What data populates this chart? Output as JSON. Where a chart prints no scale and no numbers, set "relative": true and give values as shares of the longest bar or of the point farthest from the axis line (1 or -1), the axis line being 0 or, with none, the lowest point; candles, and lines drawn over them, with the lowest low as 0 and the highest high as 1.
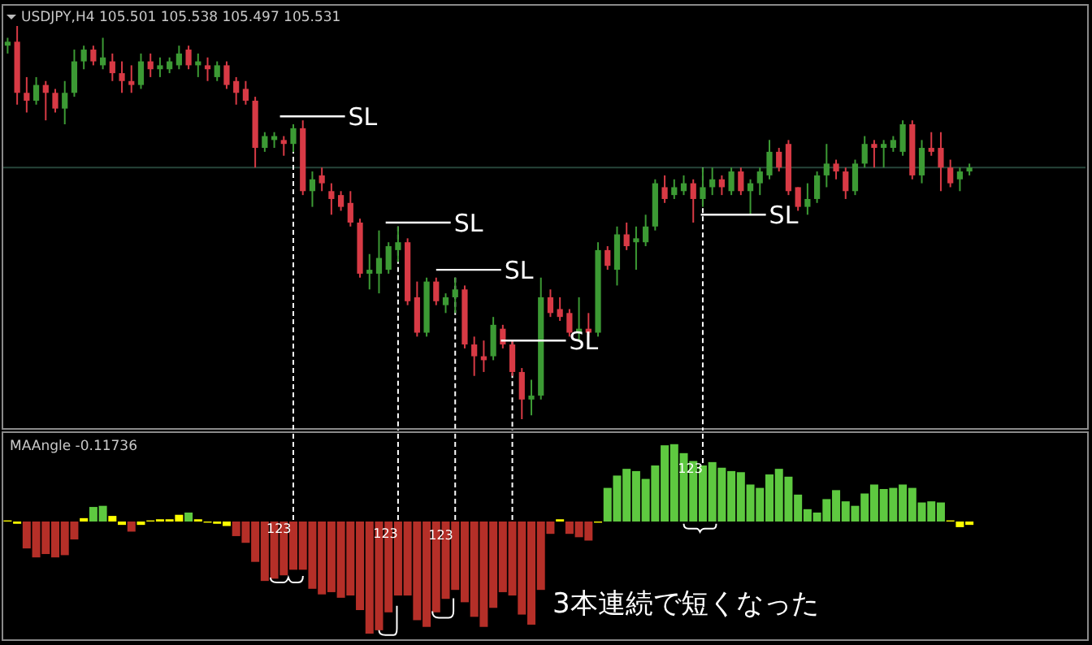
{
  "chart_data": [
    {
      "type": "candlestick",
      "title": "USDJPY,H4 105.501 105.538 105.497 105.531",
      "relative": true,
      "categories": [
        null,
        null,
        null,
        null,
        null,
        null,
        null,
        null,
        null,
        null,
        null,
        null,
        null,
        null,
        null,
        null,
        null,
        null,
        null,
        null,
        null,
        null,
        null,
        null,
        null,
        null,
        null,
        null,
        null,
        null,
        null,
        null,
        null,
        null,
        null,
        null,
        null,
        null,
        null,
        null,
        null,
        null,
        null,
        null,
        null,
        null,
        null,
        null,
        null,
        null,
        null,
        null,
        null,
        null,
        null,
        null,
        null,
        null,
        null,
        null,
        null,
        null,
        null,
        null,
        null,
        null,
        null,
        null,
        null,
        null,
        null,
        null,
        null,
        null,
        null,
        null,
        null,
        null,
        null,
        null,
        null,
        null,
        null,
        null,
        null,
        null,
        null,
        null,
        null,
        null,
        null,
        null,
        null,
        null,
        null,
        null,
        null,
        null,
        null,
        null,
        null,
        null
      ],
      "ohlc": [
        [
          0.95,
          0.97,
          0.93,
          0.96
        ],
        [
          0.96,
          1.0,
          0.8,
          0.83
        ],
        [
          0.83,
          0.87,
          0.78,
          0.81
        ],
        [
          0.81,
          0.87,
          0.8,
          0.85
        ],
        [
          0.85,
          0.86,
          0.76,
          0.83
        ],
        [
          0.83,
          0.84,
          0.78,
          0.79
        ],
        [
          0.79,
          0.86,
          0.75,
          0.83
        ],
        [
          0.83,
          0.94,
          0.82,
          0.91
        ],
        [
          0.91,
          0.95,
          0.89,
          0.94
        ],
        [
          0.94,
          0.95,
          0.9,
          0.91
        ],
        [
          0.9,
          0.97,
          0.89,
          0.92
        ],
        [
          0.91,
          0.93,
          0.86,
          0.88
        ],
        [
          0.88,
          0.91,
          0.83,
          0.86
        ],
        [
          0.86,
          0.9,
          0.83,
          0.85
        ],
        [
          0.85,
          0.93,
          0.84,
          0.91
        ],
        [
          0.91,
          0.93,
          0.87,
          0.89
        ],
        [
          0.89,
          0.92,
          0.87,
          0.9
        ],
        [
          0.89,
          0.92,
          0.88,
          0.91
        ],
        [
          0.9,
          0.95,
          0.89,
          0.93
        ],
        [
          0.94,
          0.95,
          0.89,
          0.9
        ],
        [
          0.9,
          0.93,
          0.87,
          0.91
        ],
        [
          0.9,
          0.92,
          0.86,
          0.89
        ],
        [
          0.87,
          0.91,
          0.86,
          0.9
        ],
        [
          0.9,
          0.91,
          0.84,
          0.85
        ],
        [
          0.86,
          0.87,
          0.8,
          0.83
        ],
        [
          0.84,
          0.86,
          0.8,
          0.81
        ],
        [
          0.81,
          0.82,
          0.64,
          0.69
        ],
        [
          0.69,
          0.73,
          0.68,
          0.72
        ],
        [
          0.71,
          0.73,
          0.69,
          0.72
        ],
        [
          0.71,
          0.72,
          0.67,
          0.7
        ],
        [
          0.7,
          0.75,
          0.68,
          0.74
        ],
        [
          0.74,
          0.76,
          0.57,
          0.58
        ],
        [
          0.58,
          0.63,
          0.54,
          0.61
        ],
        [
          0.62,
          0.64,
          0.58,
          0.6
        ],
        [
          0.58,
          0.6,
          0.52,
          0.56
        ],
        [
          0.57,
          0.58,
          0.53,
          0.54
        ],
        [
          0.55,
          0.58,
          0.49,
          0.5
        ],
        [
          0.5,
          0.51,
          0.36,
          0.37
        ],
        [
          0.37,
          0.42,
          0.33,
          0.38
        ],
        [
          0.37,
          0.48,
          0.32,
          0.41
        ],
        [
          0.38,
          0.45,
          0.37,
          0.44
        ],
        [
          0.43,
          0.49,
          0.4,
          0.45
        ],
        [
          0.45,
          0.46,
          0.29,
          0.3
        ],
        [
          0.31,
          0.35,
          0.21,
          0.22
        ],
        [
          0.22,
          0.36,
          0.21,
          0.35
        ],
        [
          0.35,
          0.36,
          0.29,
          0.3
        ],
        [
          0.29,
          0.32,
          0.27,
          0.31
        ],
        [
          0.31,
          0.36,
          0.27,
          0.33
        ],
        [
          0.33,
          0.34,
          0.18,
          0.19
        ],
        [
          0.19,
          0.21,
          0.11,
          0.16
        ],
        [
          0.16,
          0.2,
          0.12,
          0.15
        ],
        [
          0.16,
          0.26,
          0.15,
          0.24
        ],
        [
          0.23,
          0.24,
          0.18,
          0.19
        ],
        [
          0.19,
          0.2,
          0.11,
          0.12
        ],
        [
          0.12,
          0.13,
          0.0,
          0.05
        ],
        [
          0.05,
          0.1,
          0.01,
          0.06
        ],
        [
          0.06,
          0.36,
          0.05,
          0.31
        ],
        [
          0.31,
          0.33,
          0.26,
          0.27
        ],
        [
          0.28,
          0.31,
          0.25,
          0.26
        ],
        [
          0.27,
          0.28,
          0.21,
          0.22
        ],
        [
          0.22,
          0.31,
          0.2,
          0.23
        ],
        [
          0.23,
          0.27,
          0.21,
          0.22
        ],
        [
          0.22,
          0.45,
          0.21,
          0.43
        ],
        [
          0.43,
          0.44,
          0.38,
          0.39
        ],
        [
          0.38,
          0.49,
          0.34,
          0.47
        ],
        [
          0.47,
          0.5,
          0.43,
          0.44
        ],
        [
          0.45,
          0.49,
          0.38,
          0.46
        ],
        [
          0.45,
          0.52,
          0.44,
          0.49
        ],
        [
          0.49,
          0.61,
          0.48,
          0.6
        ],
        [
          0.59,
          0.62,
          0.55,
          0.56
        ],
        [
          0.57,
          0.61,
          0.56,
          0.59
        ],
        [
          0.58,
          0.62,
          0.57,
          0.6
        ],
        [
          0.6,
          0.61,
          0.5,
          0.56
        ],
        [
          0.56,
          0.64,
          0.54,
          0.59
        ],
        [
          0.59,
          0.64,
          0.57,
          0.61
        ],
        [
          0.61,
          0.62,
          0.57,
          0.59
        ],
        [
          0.58,
          0.64,
          0.57,
          0.63
        ],
        [
          0.63,
          0.64,
          0.57,
          0.58
        ],
        [
          0.58,
          0.61,
          0.52,
          0.6
        ],
        [
          0.6,
          0.64,
          0.57,
          0.63
        ],
        [
          0.62,
          0.71,
          0.61,
          0.68
        ],
        [
          0.68,
          0.69,
          0.63,
          0.64
        ],
        [
          0.7,
          0.71,
          0.57,
          0.58
        ],
        [
          0.59,
          0.59,
          0.53,
          0.54
        ],
        [
          0.54,
          0.6,
          0.52,
          0.56
        ],
        [
          0.56,
          0.63,
          0.55,
          0.62
        ],
        [
          0.62,
          0.7,
          0.59,
          0.65
        ],
        [
          0.65,
          0.66,
          0.61,
          0.63
        ],
        [
          0.63,
          0.64,
          0.56,
          0.58
        ],
        [
          0.58,
          0.66,
          0.57,
          0.65
        ],
        [
          0.65,
          0.72,
          0.64,
          0.7
        ],
        [
          0.7,
          0.71,
          0.64,
          0.69
        ],
        [
          0.69,
          0.71,
          0.64,
          0.7
        ],
        [
          0.69,
          0.72,
          0.68,
          0.71
        ],
        [
          0.68,
          0.76,
          0.67,
          0.75
        ],
        [
          0.75,
          0.76,
          0.61,
          0.62
        ],
        [
          0.62,
          0.71,
          0.6,
          0.69
        ],
        [
          0.69,
          0.73,
          0.67,
          0.68
        ],
        [
          0.69,
          0.73,
          0.58,
          0.64
        ],
        [
          0.64,
          0.66,
          0.59,
          0.6
        ],
        [
          0.61,
          0.64,
          0.58,
          0.63
        ],
        [
          0.63,
          0.65,
          0.62,
          0.64
        ]
      ],
      "colors": [
        "#3c9a34",
        "#d83a45",
        "#d83a45",
        "#3c9a34",
        "#d83a45",
        "#d83a45",
        "#3c9a34",
        "#3c9a34",
        "#3c9a34",
        "#d83a45",
        "#3c9a34",
        "#d83a45",
        "#d83a45",
        "#d83a45",
        "#3c9a34",
        "#d83a45",
        "#3c9a34",
        "#3c9a34",
        "#3c9a34",
        "#d83a45",
        "#3c9a34",
        "#d83a45",
        "#3c9a34",
        "#d83a45",
        "#d83a45",
        "#d83a45",
        "#d83a45",
        "#3c9a34",
        "#3c9a34",
        "#d83a45",
        "#3c9a34",
        "#d83a45",
        "#3c9a34",
        "#d83a45",
        "#d83a45",
        "#d83a45",
        "#d83a45",
        "#d83a45",
        "#3c9a34",
        "#3c9a34",
        "#3c9a34",
        "#3c9a34",
        "#d83a45",
        "#d83a45",
        "#3c9a34",
        "#d83a45",
        "#3c9a34",
        "#3c9a34",
        "#d83a45",
        "#d83a45",
        "#d83a45",
        "#3c9a34",
        "#d83a45",
        "#d83a45",
        "#d83a45",
        "#3c9a34",
        "#3c9a34",
        "#d83a45",
        "#d83a45",
        "#d83a45",
        "#3c9a34",
        "#d83a45",
        "#3c9a34",
        "#d83a45",
        "#3c9a34",
        "#d83a45",
        "#3c9a34",
        "#3c9a34",
        "#3c9a34",
        "#d83a45",
        "#3c9a34",
        "#3c9a34",
        "#d83a45",
        "#3c9a34",
        "#3c9a34",
        "#d83a45",
        "#3c9a34",
        "#d83a45",
        "#3c9a34",
        "#3c9a34",
        "#3c9a34",
        "#d83a45",
        "#d83a45",
        "#d83a45",
        "#3c9a34",
        "#3c9a34",
        "#3c9a34",
        "#d83a45",
        "#d83a45",
        "#3c9a34",
        "#3c9a34",
        "#d83a45",
        "#3c9a34",
        "#3c9a34",
        "#3c9a34",
        "#d83a45",
        "#3c9a34",
        "#d83a45",
        "#d83a45",
        "#d83a45",
        "#3c9a34",
        "#3c9a34"
      ],
      "ref_lines": [
        {
          "axis": "y",
          "value": 0.64,
          "color": "#27453a",
          "line_style": "solid"
        }
      ],
      "annotations": [
        "SL",
        "SL",
        "SL",
        "SL",
        "SL"
      ]
    },
    {
      "type": "bar",
      "title": "MAAngle -0.11736",
      "relative": true,
      "categories": [
        null,
        null,
        null,
        null,
        null,
        null,
        null,
        null,
        null,
        null,
        null,
        null,
        null,
        null,
        null,
        null,
        null,
        null,
        null,
        null,
        null,
        null,
        null,
        null,
        null,
        null,
        null,
        null,
        null,
        null,
        null,
        null,
        null,
        null,
        null,
        null,
        null,
        null,
        null,
        null,
        null,
        null,
        null,
        null,
        null,
        null,
        null,
        null,
        null,
        null,
        null,
        null,
        null,
        null,
        null,
        null,
        null,
        null,
        null,
        null,
        null,
        null,
        null,
        null,
        null,
        null,
        null,
        null,
        null,
        null,
        null,
        null,
        null,
        null,
        null,
        null,
        null,
        null,
        null,
        null,
        null,
        null,
        null,
        null,
        null,
        null,
        null,
        null,
        null,
        null,
        null,
        null,
        null,
        null,
        null,
        null,
        null,
        null,
        null,
        null,
        null,
        null
      ],
      "values": [
        0.01,
        -0.02,
        -0.24,
        -0.32,
        -0.29,
        -0.32,
        -0.3,
        -0.16,
        0.03,
        0.13,
        0.14,
        0.05,
        -0.03,
        -0.09,
        -0.03,
        0.01,
        0.02,
        0.02,
        0.06,
        0.08,
        0.02,
        -0.01,
        -0.02,
        -0.04,
        -0.13,
        -0.19,
        -0.36,
        -0.53,
        -0.51,
        -0.48,
        -0.43,
        -0.43,
        -0.6,
        -0.65,
        -0.63,
        -0.68,
        -0.66,
        -0.79,
        -1.0,
        -0.97,
        -0.81,
        -0.66,
        -0.66,
        -0.88,
        -0.94,
        -0.81,
        -0.69,
        -0.61,
        -0.72,
        -0.85,
        -0.94,
        -0.77,
        -0.63,
        -0.66,
        -0.83,
        -0.92,
        -0.61,
        -0.11,
        0.02,
        -0.11,
        -0.14,
        -0.17,
        -0.01,
        0.3,
        0.41,
        0.47,
        0.45,
        0.38,
        0.5,
        0.68,
        0.69,
        0.61,
        0.54,
        0.5,
        0.53,
        0.48,
        0.45,
        0.44,
        0.33,
        0.3,
        0.42,
        0.47,
        0.4,
        0.24,
        0.11,
        0.08,
        0.2,
        0.28,
        0.18,
        0.14,
        0.25,
        0.33,
        0.29,
        0.3,
        0.33,
        0.3,
        0.17,
        0.18,
        0.17,
        0.01,
        -0.05,
        -0.03
      ],
      "colors": [
        "#ffff00",
        "#ffff00",
        "#b52f28",
        "#b52f28",
        "#b52f28",
        "#b52f28",
        "#b52f28",
        "#b52f28",
        "#ffff00",
        "#5ec940",
        "#5ec940",
        "#ffff00",
        "#ffff00",
        "#b52f28",
        "#ffff00",
        "#ffff00",
        "#ffff00",
        "#ffff00",
        "#ffff00",
        "#5ec940",
        "#ffff00",
        "#ffff00",
        "#ffff00",
        "#ffff00",
        "#b52f28",
        "#b52f28",
        "#b52f28",
        "#b52f28",
        "#b52f28",
        "#b52f28",
        "#b52f28",
        "#b52f28",
        "#b52f28",
        "#b52f28",
        "#b52f28",
        "#b52f28",
        "#b52f28",
        "#b52f28",
        "#b52f28",
        "#b52f28",
        "#b52f28",
        "#b52f28",
        "#b52f28",
        "#b52f28",
        "#b52f28",
        "#b52f28",
        "#b52f28",
        "#b52f28",
        "#b52f28",
        "#b52f28",
        "#b52f28",
        "#b52f28",
        "#b52f28",
        "#b52f28",
        "#b52f28",
        "#b52f28",
        "#b52f28",
        "#b52f28",
        "#ffff00",
        "#b52f28",
        "#b52f28",
        "#b52f28",
        "#ffff00",
        "#5ec940",
        "#5ec940",
        "#5ec940",
        "#5ec940",
        "#5ec940",
        "#5ec940",
        "#5ec940",
        "#5ec940",
        "#5ec940",
        "#5ec940",
        "#5ec940",
        "#5ec940",
        "#5ec940",
        "#5ec940",
        "#5ec940",
        "#5ec940",
        "#5ec940",
        "#5ec940",
        "#5ec940",
        "#5ec940",
        "#5ec940",
        "#5ec940",
        "#5ec940",
        "#5ec940",
        "#5ec940",
        "#5ec940",
        "#5ec940",
        "#5ec940",
        "#5ec940",
        "#5ec940",
        "#5ec940",
        "#5ec940",
        "#5ec940",
        "#5ec940",
        "#5ec940",
        "#5ec940",
        "#ffff00",
        "#ffff00",
        "#ffff00"
      ],
      "annotations": [
        "123",
        "123",
        "123",
        "123",
        "3本連続で短くなった"
      ]
    }
  ]
}
